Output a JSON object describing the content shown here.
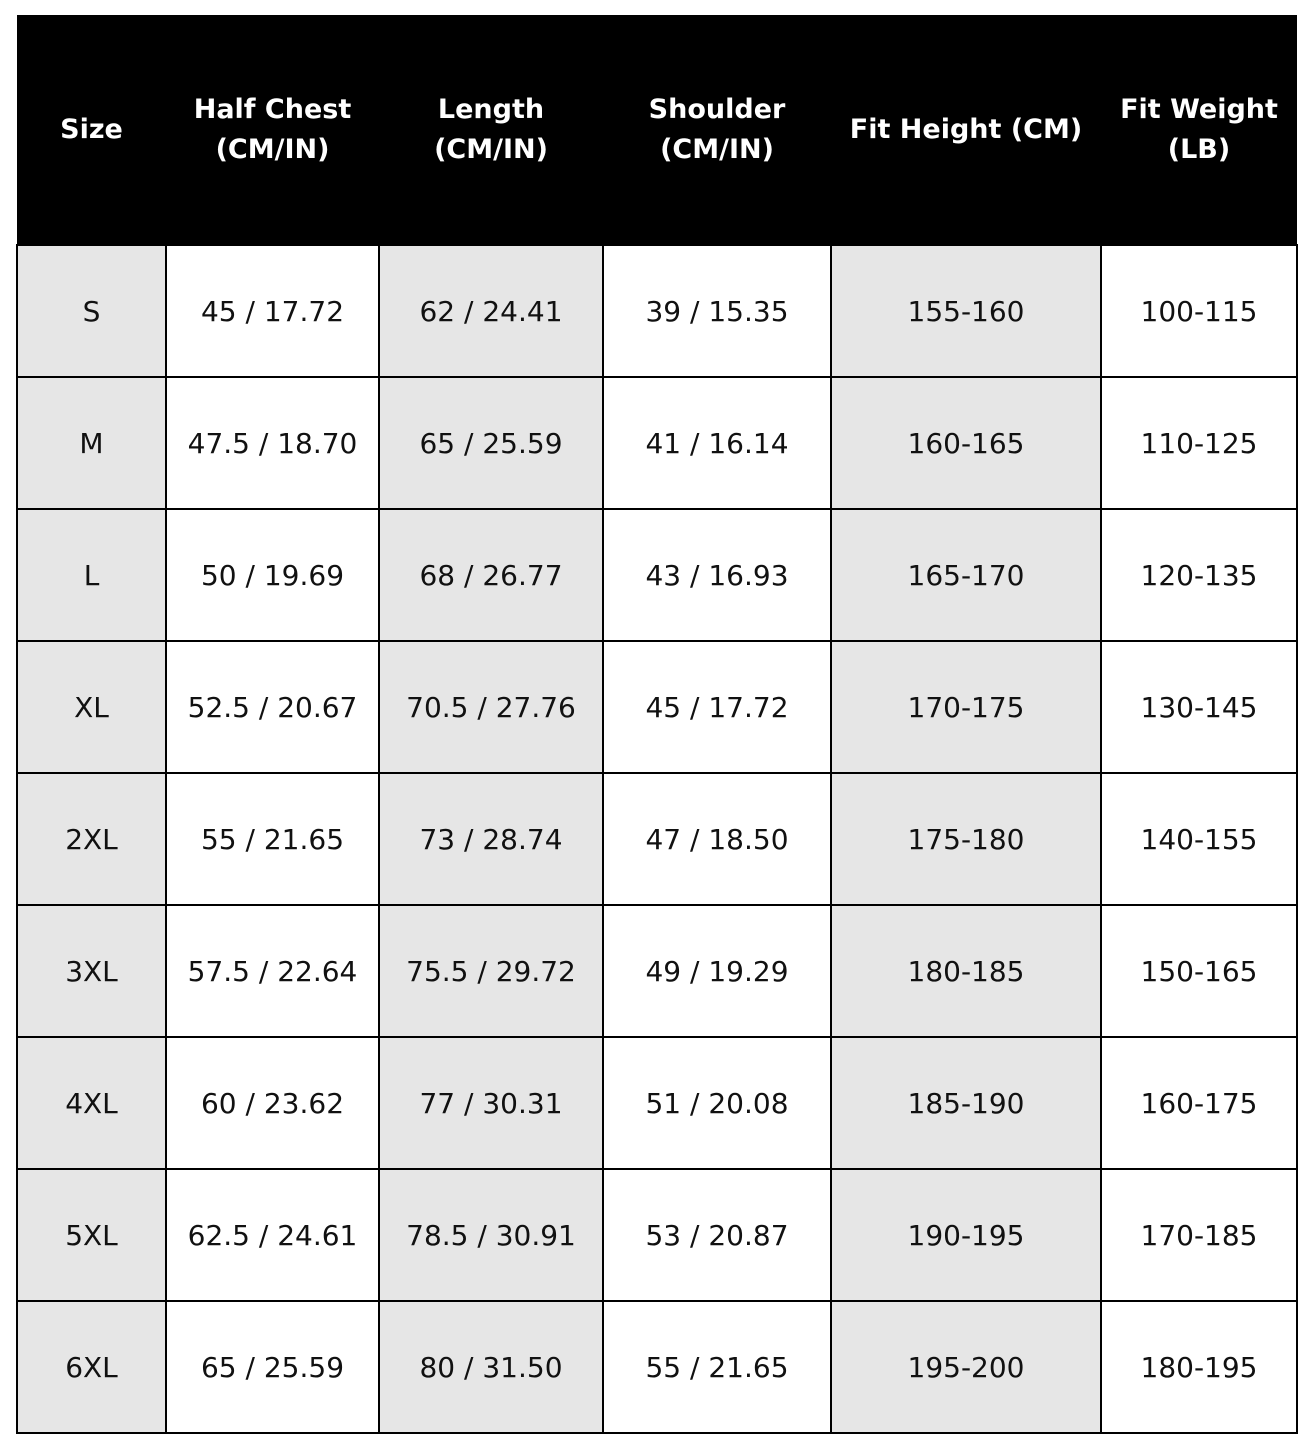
{
  "table": {
    "header": [
      [
        "Size"
      ],
      [
        "Half Chest",
        "(CM/IN)"
      ],
      [
        "Length",
        "(CM/IN)"
      ],
      [
        "Shoulder",
        "(CM/IN)"
      ],
      [
        "Fit Height (CM)"
      ],
      [
        "Fit Weight",
        "(LB)"
      ]
    ],
    "rows": [
      [
        "S",
        "45 / 17.72",
        "62 / 24.41",
        "39 / 15.35",
        "155-160",
        "100-115"
      ],
      [
        "M",
        "47.5 / 18.70",
        "65 / 25.59",
        "41 / 16.14",
        "160-165",
        "110-125"
      ],
      [
        "L",
        "50 / 19.69",
        "68 / 26.77",
        "43 / 16.93",
        "165-170",
        "120-135"
      ],
      [
        "XL",
        "52.5 / 20.67",
        "70.5 / 27.76",
        "45 / 17.72",
        "170-175",
        "130-145"
      ],
      [
        "2XL",
        "55 / 21.65",
        "73 / 28.74",
        "47 / 18.50",
        "175-180",
        "140-155"
      ],
      [
        "3XL",
        "57.5 / 22.64",
        "75.5 / 29.72",
        "49 / 19.29",
        "180-185",
        "150-165"
      ],
      [
        "4XL",
        "60 / 23.62",
        "77 / 30.31",
        "51 / 20.08",
        "185-190",
        "160-175"
      ],
      [
        "5XL",
        "62.5 / 24.61",
        "78.5 / 30.91",
        "53 / 20.87",
        "190-195",
        "170-185"
      ],
      [
        "6XL",
        "65 / 25.59",
        "80 / 31.50",
        "55 / 21.65",
        "195-200",
        "180-195"
      ]
    ]
  }
}
